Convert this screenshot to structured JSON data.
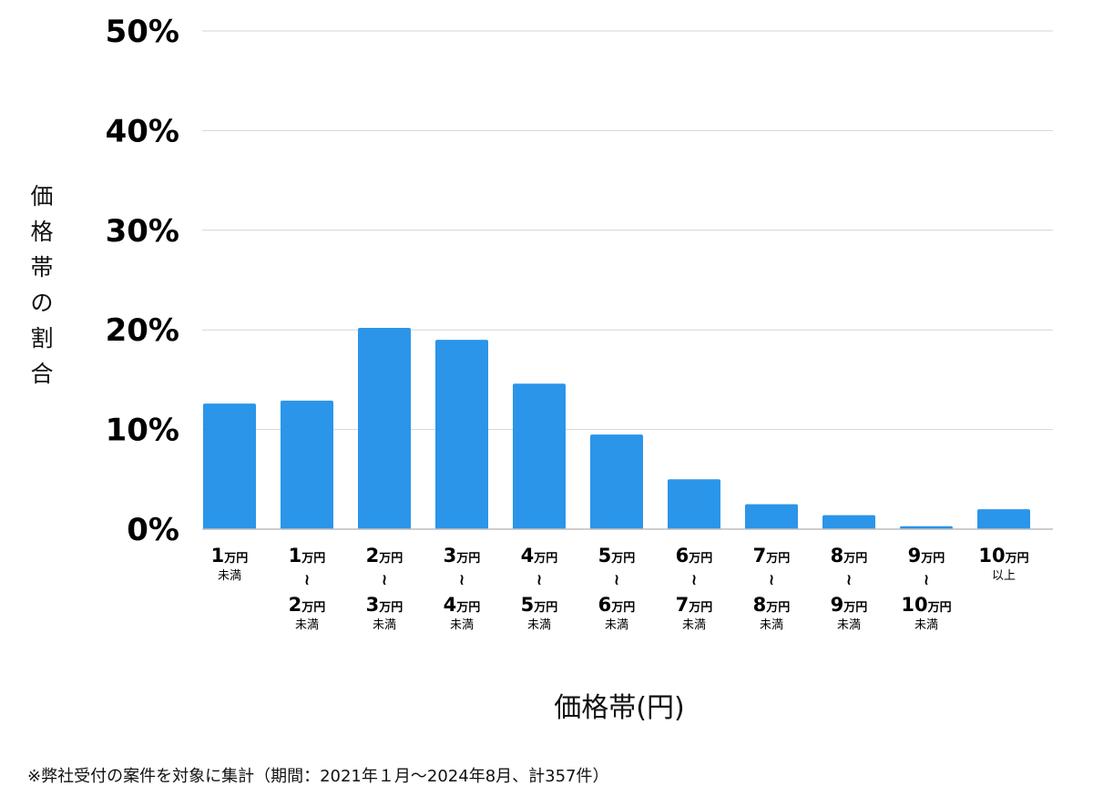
{
  "chart_data": {
    "type": "bar",
    "ylabel": "価格帯の割合",
    "xlabel": "価格帯(円)",
    "ylim": [
      0,
      50
    ],
    "y_ticks": [
      "0%",
      "10%",
      "20%",
      "30%",
      "40%",
      "50%"
    ],
    "grid": true,
    "bar_color": "#2b95e9",
    "categories": [
      {
        "top_num": "1",
        "top_unit": "万円",
        "tilde": "",
        "bottom_num": "",
        "bottom_unit": "",
        "suffix": "未満"
      },
      {
        "top_num": "1",
        "top_unit": "万円",
        "tilde": "≀",
        "bottom_num": "2",
        "bottom_unit": "万円",
        "suffix": "未満"
      },
      {
        "top_num": "2",
        "top_unit": "万円",
        "tilde": "≀",
        "bottom_num": "3",
        "bottom_unit": "万円",
        "suffix": "未満"
      },
      {
        "top_num": "3",
        "top_unit": "万円",
        "tilde": "≀",
        "bottom_num": "4",
        "bottom_unit": "万円",
        "suffix": "未満"
      },
      {
        "top_num": "4",
        "top_unit": "万円",
        "tilde": "≀",
        "bottom_num": "5",
        "bottom_unit": "万円",
        "suffix": "未満"
      },
      {
        "top_num": "5",
        "top_unit": "万円",
        "tilde": "≀",
        "bottom_num": "6",
        "bottom_unit": "万円",
        "suffix": "未満"
      },
      {
        "top_num": "6",
        "top_unit": "万円",
        "tilde": "≀",
        "bottom_num": "7",
        "bottom_unit": "万円",
        "suffix": "未満"
      },
      {
        "top_num": "7",
        "top_unit": "万円",
        "tilde": "≀",
        "bottom_num": "8",
        "bottom_unit": "万円",
        "suffix": "未満"
      },
      {
        "top_num": "8",
        "top_unit": "万円",
        "tilde": "≀",
        "bottom_num": "9",
        "bottom_unit": "万円",
        "suffix": "未満"
      },
      {
        "top_num": "9",
        "top_unit": "万円",
        "tilde": "≀",
        "bottom_num": "10",
        "bottom_unit": "万円",
        "suffix": "未満"
      },
      {
        "top_num": "10",
        "top_unit": "万円",
        "tilde": "",
        "bottom_num": "",
        "bottom_unit": "",
        "suffix": "以上"
      }
    ],
    "values": [
      12.6,
      12.9,
      20.2,
      19.0,
      14.6,
      9.5,
      5.0,
      2.5,
      1.4,
      0.3,
      2.0
    ]
  },
  "footnote": "※弊社受付の案件を対象に集計（期間：2021年１月〜2024年8月、計357件）"
}
